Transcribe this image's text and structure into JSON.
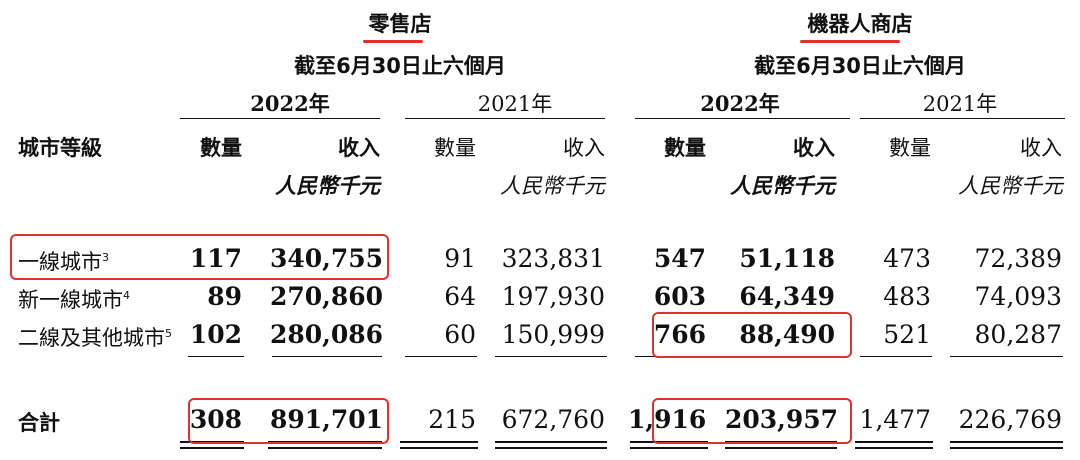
{
  "group_titles": {
    "retail": "零售店",
    "robot": "機器人商店"
  },
  "period": "截至6月30日止六個月",
  "years": {
    "current": "2022年",
    "prior": "2021年"
  },
  "columns": {
    "tier": "城市等級",
    "quantity": "數量",
    "revenue": "收入",
    "unit": "人民幣千元"
  },
  "rows": [
    {
      "tier": "一線城市",
      "note": "3",
      "retail_2022": [
        "117",
        "340,755"
      ],
      "retail_2021": [
        "91",
        "323,831"
      ],
      "robot_2022": [
        "547",
        "51,118"
      ],
      "robot_2021": [
        "473",
        "72,389"
      ]
    },
    {
      "tier": "新一線城市",
      "note": "4",
      "retail_2022": [
        "89",
        "270,860"
      ],
      "retail_2021": [
        "64",
        "197,930"
      ],
      "robot_2022": [
        "603",
        "64,349"
      ],
      "robot_2021": [
        "483",
        "74,093"
      ]
    },
    {
      "tier": "二線及其他城市",
      "note": "5",
      "retail_2022": [
        "102",
        "280,086"
      ],
      "retail_2021": [
        "60",
        "150,999"
      ],
      "robot_2022": [
        "766",
        "88,490"
      ],
      "robot_2021": [
        "521",
        "80,287"
      ]
    }
  ],
  "total": {
    "label": "合計",
    "retail_2022": [
      "308",
      "891,701"
    ],
    "retail_2021": [
      "215",
      "672,760"
    ],
    "robot_2022": [
      "1,916",
      "203,957"
    ],
    "robot_2021": [
      "1,477",
      "226,769"
    ]
  },
  "highlight_color": "#e0312b"
}
